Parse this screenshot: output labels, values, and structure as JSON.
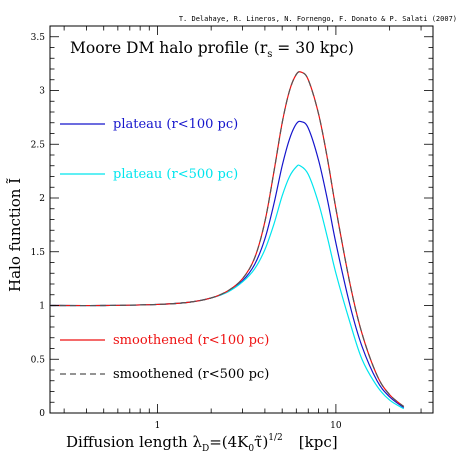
{
  "credit": "T. Delahaye, R. Lineros, N. Fornengo, F. Donato & P. Salati (2007)",
  "chart_data": {
    "type": "line",
    "title": "Moore DM halo profile (r",
    "title_sub": "s",
    "title_suffix": " = 30 kpc)",
    "xlabel": "Diffusion length λ",
    "xlabel_sub": "D",
    "xlabel_mid": "=(4K",
    "xlabel_sub2": "0",
    "xlabel_tau": "τ̃",
    "xlabel_close": ")",
    "xlabel_sup": "1/2",
    "xlabel_unit": "[kpc]",
    "ylabel": "Halo function Ĩ",
    "x_scale": "log",
    "xlim": [
      0.25,
      35
    ],
    "ylim": [
      0,
      3.6
    ],
    "x_ticks": [
      {
        "value": 1,
        "label": "1"
      },
      {
        "value": 10,
        "label": "10"
      }
    ],
    "y_ticks": [
      {
        "value": 0,
        "label": "0"
      },
      {
        "value": 0.5,
        "label": "0.5"
      },
      {
        "value": 1,
        "label": "1"
      },
      {
        "value": 1.5,
        "label": "1.5"
      },
      {
        "value": 2,
        "label": "2"
      },
      {
        "value": 2.5,
        "label": "2.5"
      },
      {
        "value": 3,
        "label": "3"
      },
      {
        "value": 3.5,
        "label": "3.5"
      }
    ],
    "grid": false,
    "legend_placement": "left",
    "series": [
      {
        "name": "plateau (r<100 pc)",
        "color": "#1515cc",
        "dash": "solid",
        "points": [
          [
            0.25,
            1.0
          ],
          [
            0.5,
            1.0
          ],
          [
            1,
            1.01
          ],
          [
            1.5,
            1.03
          ],
          [
            2,
            1.07
          ],
          [
            2.5,
            1.13
          ],
          [
            3,
            1.23
          ],
          [
            3.5,
            1.38
          ],
          [
            4,
            1.62
          ],
          [
            4.5,
            1.95
          ],
          [
            5,
            2.3
          ],
          [
            5.5,
            2.55
          ],
          [
            6,
            2.69
          ],
          [
            6.4,
            2.71
          ],
          [
            7,
            2.65
          ],
          [
            8,
            2.35
          ],
          [
            9,
            1.97
          ],
          [
            10,
            1.58
          ],
          [
            12,
            1.0
          ],
          [
            14,
            0.62
          ],
          [
            17,
            0.3
          ],
          [
            20,
            0.15
          ],
          [
            24,
            0.05
          ]
        ]
      },
      {
        "name": "plateau (r<500 pc)",
        "color": "#00e5ee",
        "dash": "solid",
        "points": [
          [
            0.25,
            1.0
          ],
          [
            0.5,
            1.0
          ],
          [
            1,
            1.01
          ],
          [
            1.5,
            1.03
          ],
          [
            2,
            1.07
          ],
          [
            2.5,
            1.13
          ],
          [
            3,
            1.22
          ],
          [
            3.5,
            1.34
          ],
          [
            4,
            1.52
          ],
          [
            4.5,
            1.76
          ],
          [
            5,
            2.02
          ],
          [
            5.5,
            2.2
          ],
          [
            6,
            2.29
          ],
          [
            6.3,
            2.3
          ],
          [
            7,
            2.22
          ],
          [
            8,
            1.95
          ],
          [
            9,
            1.62
          ],
          [
            10,
            1.3
          ],
          [
            12,
            0.84
          ],
          [
            14,
            0.5
          ],
          [
            17,
            0.25
          ],
          [
            20,
            0.12
          ],
          [
            24,
            0.04
          ]
        ]
      },
      {
        "name": "smoothened (r<100 pc)",
        "color": "#ee1111",
        "dash": "solid",
        "points": [
          [
            0.25,
            1.0
          ],
          [
            0.5,
            1.0
          ],
          [
            1,
            1.01
          ],
          [
            1.5,
            1.03
          ],
          [
            2,
            1.07
          ],
          [
            2.5,
            1.14
          ],
          [
            3,
            1.25
          ],
          [
            3.5,
            1.44
          ],
          [
            4,
            1.78
          ],
          [
            4.5,
            2.25
          ],
          [
            5,
            2.7
          ],
          [
            5.5,
            3.0
          ],
          [
            6,
            3.15
          ],
          [
            6.4,
            3.17
          ],
          [
            7,
            3.1
          ],
          [
            8,
            2.78
          ],
          [
            9,
            2.35
          ],
          [
            10,
            1.9
          ],
          [
            12,
            1.2
          ],
          [
            14,
            0.74
          ],
          [
            17,
            0.35
          ],
          [
            20,
            0.17
          ],
          [
            24,
            0.06
          ]
        ]
      },
      {
        "name": "smoothened (r<500 pc)",
        "color": "#555555",
        "dash": "dashed",
        "points": [
          [
            0.25,
            1.0
          ],
          [
            0.5,
            1.0
          ],
          [
            1,
            1.01
          ],
          [
            1.5,
            1.03
          ],
          [
            2,
            1.07
          ],
          [
            2.5,
            1.14
          ],
          [
            3,
            1.25
          ],
          [
            3.5,
            1.44
          ],
          [
            4,
            1.78
          ],
          [
            4.5,
            2.25
          ],
          [
            5,
            2.7
          ],
          [
            5.5,
            3.0
          ],
          [
            6,
            3.15
          ],
          [
            6.4,
            3.17
          ],
          [
            7,
            3.1
          ],
          [
            8,
            2.78
          ],
          [
            9,
            2.35
          ],
          [
            10,
            1.9
          ],
          [
            12,
            1.2
          ],
          [
            14,
            0.74
          ],
          [
            17,
            0.35
          ],
          [
            20,
            0.17
          ],
          [
            24,
            0.06
          ]
        ]
      }
    ]
  }
}
